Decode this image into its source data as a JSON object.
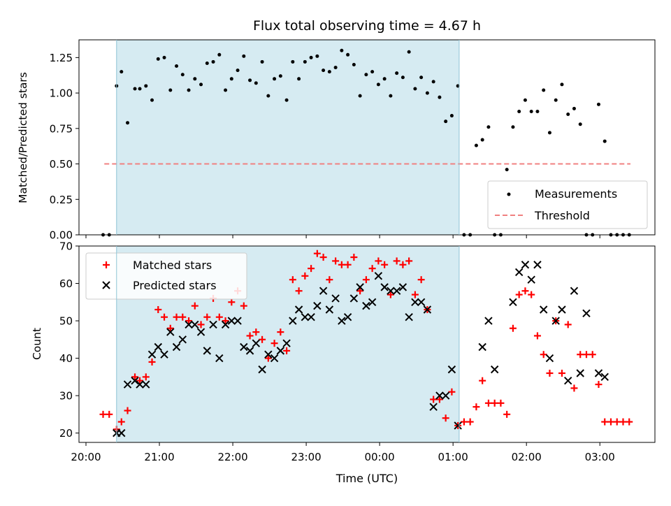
{
  "chart_data": [
    {
      "type": "scatter",
      "title": "Flux total observing time = 4.67 h",
      "xlabel": "",
      "ylabel": "Matched/Predicted stars",
      "xlim": [
        "20:00",
        "03:45"
      ],
      "ylim": [
        0,
        1.375
      ],
      "yticks": [
        "0.00",
        "0.25",
        "0.50",
        "0.75",
        "1.00",
        "1.25"
      ],
      "x_axis_type": "time",
      "shaded_interval": [
        "20:25",
        "01:05"
      ],
      "shaded_color": "#add8e6",
      "legend_position": "lower-right",
      "series": [
        {
          "name": "Measurements",
          "marker": "dot",
          "color": "#000000",
          "points": [
            [
              "20:14",
              0.0
            ],
            [
              "20:19",
              0.0
            ],
            [
              "20:25",
              1.05
            ],
            [
              "20:29",
              1.15
            ],
            [
              "20:34",
              0.79
            ],
            [
              "20:40",
              1.03
            ],
            [
              "20:44",
              1.03
            ],
            [
              "20:49",
              1.05
            ],
            [
              "20:54",
              0.95
            ],
            [
              "20:59",
              1.24
            ],
            [
              "21:04",
              1.25
            ],
            [
              "21:09",
              1.02
            ],
            [
              "21:14",
              1.19
            ],
            [
              "21:19",
              1.13
            ],
            [
              "21:24",
              1.02
            ],
            [
              "21:29",
              1.1
            ],
            [
              "21:34",
              1.06
            ],
            [
              "21:39",
              1.21
            ],
            [
              "21:44",
              1.22
            ],
            [
              "21:49",
              1.27
            ],
            [
              "21:54",
              1.02
            ],
            [
              "21:59",
              1.1
            ],
            [
              "22:04",
              1.16
            ],
            [
              "22:09",
              1.26
            ],
            [
              "22:14",
              1.09
            ],
            [
              "22:19",
              1.07
            ],
            [
              "22:24",
              1.22
            ],
            [
              "22:29",
              0.98
            ],
            [
              "22:34",
              1.1
            ],
            [
              "22:39",
              1.12
            ],
            [
              "22:44",
              0.95
            ],
            [
              "22:49",
              1.22
            ],
            [
              "22:54",
              1.1
            ],
            [
              "22:59",
              1.22
            ],
            [
              "23:04",
              1.25
            ],
            [
              "23:09",
              1.26
            ],
            [
              "23:14",
              1.16
            ],
            [
              "23:19",
              1.15
            ],
            [
              "23:24",
              1.18
            ],
            [
              "23:29",
              1.3
            ],
            [
              "23:34",
              1.27
            ],
            [
              "23:39",
              1.2
            ],
            [
              "23:44",
              0.98
            ],
            [
              "23:49",
              1.13
            ],
            [
              "23:54",
              1.15
            ],
            [
              "23:59",
              1.06
            ],
            [
              "00:04",
              1.1
            ],
            [
              "00:09",
              0.98
            ],
            [
              "00:14",
              1.14
            ],
            [
              "00:19",
              1.11
            ],
            [
              "00:24",
              1.29
            ],
            [
              "00:29",
              1.03
            ],
            [
              "00:34",
              1.11
            ],
            [
              "00:39",
              1.0
            ],
            [
              "00:44",
              1.08
            ],
            [
              "00:49",
              0.97
            ],
            [
              "00:54",
              0.8
            ],
            [
              "00:59",
              0.84
            ],
            [
              "01:04",
              1.05
            ],
            [
              "01:09",
              0.0
            ],
            [
              "01:14",
              0.0
            ],
            [
              "01:19",
              0.63
            ],
            [
              "01:24",
              0.67
            ],
            [
              "01:29",
              0.76
            ],
            [
              "01:34",
              0.0
            ],
            [
              "01:39",
              0.0
            ],
            [
              "01:44",
              0.46
            ],
            [
              "01:49",
              0.76
            ],
            [
              "01:54",
              0.87
            ],
            [
              "01:59",
              0.95
            ],
            [
              "02:04",
              0.87
            ],
            [
              "02:09",
              0.87
            ],
            [
              "02:14",
              1.02
            ],
            [
              "02:19",
              0.72
            ],
            [
              "02:24",
              0.95
            ],
            [
              "02:29",
              1.06
            ],
            [
              "02:34",
              0.85
            ],
            [
              "02:39",
              0.89
            ],
            [
              "02:44",
              0.78
            ],
            [
              "02:49",
              0.0
            ],
            [
              "02:54",
              0.0
            ],
            [
              "02:59",
              0.92
            ],
            [
              "03:04",
              0.66
            ],
            [
              "03:09",
              0.0
            ],
            [
              "03:14",
              0.0
            ],
            [
              "03:19",
              0.0
            ],
            [
              "03:24",
              0.0
            ]
          ]
        },
        {
          "name": "Threshold",
          "marker": "dashed-line",
          "color": "#f08080",
          "points": [
            [
              "20:15",
              0.5
            ],
            [
              "03:25",
              0.5
            ]
          ]
        }
      ]
    },
    {
      "type": "scatter",
      "title": "",
      "xlabel": "Time (UTC)",
      "ylabel": "Count",
      "xlim": [
        "20:00",
        "03:45"
      ],
      "ylim": [
        17.5,
        70
      ],
      "yticks": [
        "20",
        "30",
        "40",
        "50",
        "60",
        "70"
      ],
      "xticks": [
        "20:00",
        "21:00",
        "22:00",
        "23:00",
        "00:00",
        "01:00",
        "02:00",
        "03:00"
      ],
      "x_axis_type": "time",
      "shaded_interval": [
        "20:25",
        "01:05"
      ],
      "shaded_color": "#add8e6",
      "legend_position": "top-left",
      "series": [
        {
          "name": "Matched stars",
          "marker": "plus",
          "color": "#ff0000",
          "points": [
            [
              "20:14",
              25
            ],
            [
              "20:19",
              25
            ],
            [
              "20:25",
              21
            ],
            [
              "20:29",
              23
            ],
            [
              "20:34",
              26
            ],
            [
              "20:40",
              35
            ],
            [
              "20:44",
              34
            ],
            [
              "20:49",
              35
            ],
            [
              "20:54",
              39
            ],
            [
              "20:59",
              53
            ],
            [
              "21:04",
              51
            ],
            [
              "21:09",
              48
            ],
            [
              "21:14",
              51
            ],
            [
              "21:19",
              51
            ],
            [
              "21:24",
              50
            ],
            [
              "21:29",
              54
            ],
            [
              "21:34",
              49
            ],
            [
              "21:39",
              51
            ],
            [
              "21:44",
              56
            ],
            [
              "21:49",
              51
            ],
            [
              "21:54",
              50
            ],
            [
              "21:59",
              55
            ],
            [
              "22:04",
              58
            ],
            [
              "22:09",
              54
            ],
            [
              "22:14",
              46
            ],
            [
              "22:19",
              47
            ],
            [
              "22:24",
              45
            ],
            [
              "22:29",
              40
            ],
            [
              "22:34",
              44
            ],
            [
              "22:39",
              47
            ],
            [
              "22:44",
              42
            ],
            [
              "22:49",
              61
            ],
            [
              "22:54",
              58
            ],
            [
              "22:59",
              62
            ],
            [
              "23:04",
              64
            ],
            [
              "23:09",
              68
            ],
            [
              "23:14",
              67
            ],
            [
              "23:19",
              61
            ],
            [
              "23:24",
              66
            ],
            [
              "23:29",
              65
            ],
            [
              "23:34",
              65
            ],
            [
              "23:39",
              67
            ],
            [
              "23:44",
              58
            ],
            [
              "23:49",
              61
            ],
            [
              "23:54",
              64
            ],
            [
              "23:59",
              66
            ],
            [
              "00:04",
              65
            ],
            [
              "00:09",
              57
            ],
            [
              "00:14",
              66
            ],
            [
              "00:19",
              65
            ],
            [
              "00:24",
              66
            ],
            [
              "00:29",
              57
            ],
            [
              "00:34",
              61
            ],
            [
              "00:39",
              53
            ],
            [
              "00:44",
              29
            ],
            [
              "00:49",
              29
            ],
            [
              "00:54",
              24
            ],
            [
              "00:59",
              31
            ],
            [
              "01:04",
              22
            ],
            [
              "01:09",
              23
            ],
            [
              "01:14",
              23
            ],
            [
              "01:19",
              27
            ],
            [
              "01:24",
              34
            ],
            [
              "01:29",
              28
            ],
            [
              "01:34",
              28
            ],
            [
              "01:39",
              28
            ],
            [
              "01:44",
              25
            ],
            [
              "01:49",
              48
            ],
            [
              "01:54",
              57
            ],
            [
              "01:59",
              58
            ],
            [
              "02:04",
              57
            ],
            [
              "02:09",
              46
            ],
            [
              "02:14",
              41
            ],
            [
              "02:19",
              36
            ],
            [
              "02:24",
              50
            ],
            [
              "02:29",
              36
            ],
            [
              "02:34",
              49
            ],
            [
              "02:39",
              32
            ],
            [
              "02:44",
              41
            ],
            [
              "02:49",
              41
            ],
            [
              "02:54",
              41
            ],
            [
              "02:59",
              33
            ],
            [
              "03:04",
              23
            ],
            [
              "03:09",
              23
            ],
            [
              "03:14",
              23
            ],
            [
              "03:19",
              23
            ],
            [
              "03:24",
              23
            ]
          ]
        },
        {
          "name": "Predicted stars",
          "marker": "x",
          "color": "#000000",
          "points": [
            [
              "20:25",
              20
            ],
            [
              "20:29",
              20
            ],
            [
              "20:34",
              33
            ],
            [
              "20:40",
              34
            ],
            [
              "20:44",
              33
            ],
            [
              "20:49",
              33
            ],
            [
              "20:54",
              41
            ],
            [
              "20:59",
              43
            ],
            [
              "21:04",
              41
            ],
            [
              "21:09",
              47
            ],
            [
              "21:14",
              43
            ],
            [
              "21:19",
              45
            ],
            [
              "21:24",
              49
            ],
            [
              "21:29",
              49
            ],
            [
              "21:34",
              47
            ],
            [
              "21:39",
              42
            ],
            [
              "21:44",
              49
            ],
            [
              "21:49",
              40
            ],
            [
              "21:54",
              49
            ],
            [
              "21:59",
              50
            ],
            [
              "22:04",
              50
            ],
            [
              "22:09",
              43
            ],
            [
              "22:14",
              42
            ],
            [
              "22:19",
              44
            ],
            [
              "22:24",
              37
            ],
            [
              "22:29",
              41
            ],
            [
              "22:34",
              40
            ],
            [
              "22:39",
              42
            ],
            [
              "22:44",
              44
            ],
            [
              "22:49",
              50
            ],
            [
              "22:54",
              53
            ],
            [
              "22:59",
              51
            ],
            [
              "23:04",
              51
            ],
            [
              "23:09",
              54
            ],
            [
              "23:14",
              58
            ],
            [
              "23:19",
              53
            ],
            [
              "23:24",
              56
            ],
            [
              "23:29",
              50
            ],
            [
              "23:34",
              51
            ],
            [
              "23:39",
              56
            ],
            [
              "23:44",
              59
            ],
            [
              "23:49",
              54
            ],
            [
              "23:54",
              55
            ],
            [
              "23:59",
              62
            ],
            [
              "00:04",
              59
            ],
            [
              "00:09",
              58
            ],
            [
              "00:14",
              58
            ],
            [
              "00:19",
              59
            ],
            [
              "00:24",
              51
            ],
            [
              "00:29",
              55
            ],
            [
              "00:34",
              55
            ],
            [
              "00:39",
              53
            ],
            [
              "00:44",
              27
            ],
            [
              "00:49",
              30
            ],
            [
              "00:54",
              30
            ],
            [
              "00:59",
              37
            ],
            [
              "01:04",
              22
            ],
            [
              "01:24",
              43
            ],
            [
              "01:29",
              50
            ],
            [
              "01:34",
              37
            ],
            [
              "01:49",
              55
            ],
            [
              "01:54",
              63
            ],
            [
              "01:59",
              65
            ],
            [
              "02:04",
              61
            ],
            [
              "02:09",
              65
            ],
            [
              "02:14",
              53
            ],
            [
              "02:19",
              40
            ],
            [
              "02:24",
              50
            ],
            [
              "02:29",
              53
            ],
            [
              "02:34",
              34
            ],
            [
              "02:39",
              58
            ],
            [
              "02:44",
              36
            ],
            [
              "02:49",
              52
            ],
            [
              "02:59",
              36
            ],
            [
              "03:04",
              35
            ]
          ]
        }
      ]
    }
  ]
}
